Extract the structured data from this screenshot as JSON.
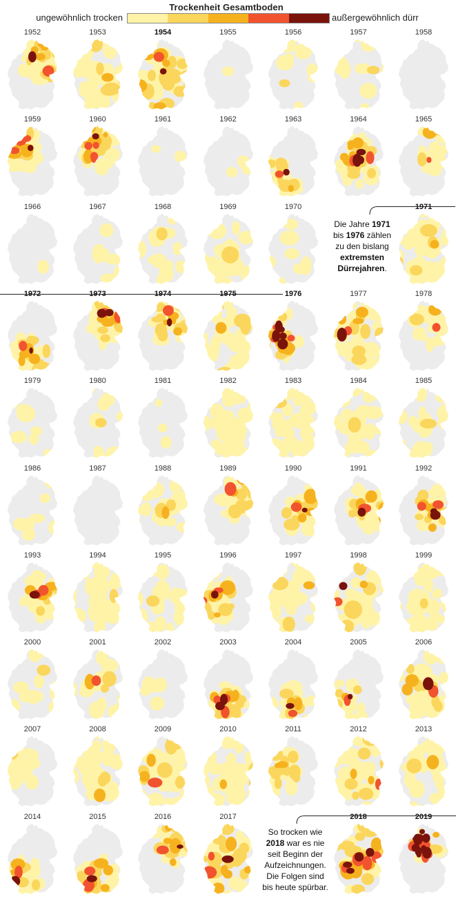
{
  "legend": {
    "title": "Trockenheit Gesamtboden",
    "low_label": "ungewöhnlich trocken",
    "high_label": "außergewöhnlich dürr",
    "colors": [
      "#fff3a8",
      "#fbd65c",
      "#f6b21e",
      "#f2532f",
      "#7a130c"
    ],
    "no_drought_color": "#ececec"
  },
  "annotations": {
    "note_1971": {
      "l1_a": "Die Jahre ",
      "l1_b": "1971",
      "l2_a": "bis ",
      "l2_b": "1976",
      "l2_c": " zählen",
      "l3": "zu den bislang",
      "l4": "extremsten",
      "l5_a": "Dürrejahren",
      "l5_b": "."
    },
    "note_2018": {
      "l1": "So trocken wie",
      "l2_a": "2018",
      "l2_b": " war es nie",
      "l3": "seit Beginn der",
      "l4": "Aufzeichnungen.",
      "l5": "Die Folgen sind",
      "l6": "bis heute spürbar."
    }
  },
  "chart_data": {
    "type": "heatmap",
    "title": "Trockenheit Gesamtboden",
    "description_scale": [
      "ungewöhnlich trocken",
      "außergewöhnlich dürr"
    ],
    "columns": 7,
    "years": [
      {
        "year": "1952",
        "levels": [
          0.55,
          0.25,
          0.1,
          0.05,
          0.03
        ],
        "pattern": "ne"
      },
      {
        "year": "1953",
        "levels": [
          0.7,
          0.12,
          0.03,
          0,
          0
        ],
        "pattern": "all"
      },
      {
        "year": "1954",
        "levels": [
          0.45,
          0.35,
          0.15,
          0.05,
          0.02
        ],
        "pattern": "all",
        "bold": true
      },
      {
        "year": "1955",
        "levels": [
          0.02,
          0,
          0,
          0,
          0
        ],
        "pattern": "none"
      },
      {
        "year": "1956",
        "levels": [
          0.2,
          0.02,
          0,
          0,
          0
        ],
        "pattern": "all"
      },
      {
        "year": "1957",
        "levels": [
          0.15,
          0.01,
          0,
          0,
          0
        ],
        "pattern": "all"
      },
      {
        "year": "1958",
        "levels": [
          0,
          0,
          0,
          0,
          0
        ],
        "pattern": "none"
      },
      {
        "year": "1959",
        "levels": [
          0.5,
          0.3,
          0.2,
          0.12,
          0.04
        ],
        "pattern": "nw"
      },
      {
        "year": "1960",
        "levels": [
          0.55,
          0.25,
          0.15,
          0.15,
          0.05
        ],
        "pattern": "north"
      },
      {
        "year": "1961",
        "levels": [
          0.03,
          0,
          0,
          0,
          0
        ],
        "pattern": "none"
      },
      {
        "year": "1962",
        "levels": [
          0.05,
          0,
          0,
          0,
          0
        ],
        "pattern": "none"
      },
      {
        "year": "1963",
        "levels": [
          0.6,
          0.2,
          0.08,
          0.02,
          0.03
        ],
        "pattern": "sw"
      },
      {
        "year": "1964",
        "levels": [
          0.45,
          0.3,
          0.2,
          0.1,
          0.12
        ],
        "pattern": "center"
      },
      {
        "year": "1965",
        "levels": [
          0.35,
          0.05,
          0.02,
          0.01,
          0
        ],
        "pattern": "ne"
      },
      {
        "year": "1966",
        "levels": [
          0.01,
          0,
          0,
          0,
          0
        ],
        "pattern": "none"
      },
      {
        "year": "1967",
        "levels": [
          0.1,
          0,
          0,
          0,
          0
        ],
        "pattern": "all"
      },
      {
        "year": "1968",
        "levels": [
          0.25,
          0.01,
          0,
          0,
          0
        ],
        "pattern": "all"
      },
      {
        "year": "1969",
        "levels": [
          0.35,
          0.02,
          0,
          0,
          0
        ],
        "pattern": "all"
      },
      {
        "year": "1970",
        "levels": [
          0.15,
          0,
          0,
          0,
          0
        ],
        "pattern": "all"
      },
      {
        "year": "",
        "levels": [
          0,
          0,
          0,
          0,
          0
        ],
        "pattern": "empty"
      },
      {
        "year": "1971",
        "levels": [
          0.8,
          0.1,
          0.02,
          0,
          0
        ],
        "pattern": "all",
        "bold": true
      },
      {
        "year": "1972",
        "levels": [
          0.55,
          0.2,
          0.1,
          0.05,
          0.05
        ],
        "pattern": "south",
        "bold": true
      },
      {
        "year": "1973",
        "levels": [
          0.45,
          0.25,
          0.15,
          0.08,
          0.08
        ],
        "pattern": "ne",
        "bold": true
      },
      {
        "year": "1974",
        "levels": [
          0.5,
          0.2,
          0.1,
          0.05,
          0.04
        ],
        "pattern": "ne",
        "bold": true
      },
      {
        "year": "1975",
        "levels": [
          0.7,
          0.1,
          0.02,
          0,
          0
        ],
        "pattern": "all",
        "bold": true
      },
      {
        "year": "1976",
        "levels": [
          0.2,
          0.2,
          0.25,
          0.15,
          0.2
        ],
        "pattern": "west",
        "bold": true
      },
      {
        "year": "1977",
        "levels": [
          0.6,
          0.2,
          0.08,
          0.03,
          0.02
        ],
        "pattern": "all"
      },
      {
        "year": "1978",
        "levels": [
          0.35,
          0.05,
          0.02,
          0.01,
          0
        ],
        "pattern": "ne"
      },
      {
        "year": "1979",
        "levels": [
          0.12,
          0,
          0,
          0,
          0
        ],
        "pattern": "all"
      },
      {
        "year": "1980",
        "levels": [
          0.15,
          0.01,
          0,
          0,
          0
        ],
        "pattern": "all"
      },
      {
        "year": "1981",
        "levels": [
          0.05,
          0,
          0,
          0,
          0
        ],
        "pattern": "none"
      },
      {
        "year": "1982",
        "levels": [
          0.55,
          0.02,
          0,
          0,
          0
        ],
        "pattern": "all"
      },
      {
        "year": "1983",
        "levels": [
          0.65,
          0.03,
          0,
          0,
          0
        ],
        "pattern": "all"
      },
      {
        "year": "1984",
        "levels": [
          0.6,
          0.02,
          0,
          0,
          0
        ],
        "pattern": "all"
      },
      {
        "year": "1985",
        "levels": [
          0.4,
          0.02,
          0,
          0,
          0
        ],
        "pattern": "all"
      },
      {
        "year": "1986",
        "levels": [
          0.15,
          0,
          0,
          0,
          0
        ],
        "pattern": "all"
      },
      {
        "year": "1987",
        "levels": [
          0,
          0,
          0,
          0,
          0
        ],
        "pattern": "none"
      },
      {
        "year": "1988",
        "levels": [
          0.35,
          0.05,
          0.01,
          0,
          0
        ],
        "pattern": "all"
      },
      {
        "year": "1989",
        "levels": [
          0.6,
          0.15,
          0.05,
          0.01,
          0
        ],
        "pattern": "ne"
      },
      {
        "year": "1990",
        "levels": [
          0.55,
          0.2,
          0.1,
          0.05,
          0.03
        ],
        "pattern": "east"
      },
      {
        "year": "1991",
        "levels": [
          0.55,
          0.2,
          0.1,
          0.05,
          0.05
        ],
        "pattern": "east"
      },
      {
        "year": "1992",
        "levels": [
          0.5,
          0.25,
          0.15,
          0.08,
          0.07
        ],
        "pattern": "east"
      },
      {
        "year": "1993",
        "levels": [
          0.55,
          0.15,
          0.1,
          0.06,
          0.04
        ],
        "pattern": "east"
      },
      {
        "year": "1994",
        "levels": [
          0.45,
          0.03,
          0,
          0,
          0
        ],
        "pattern": "all"
      },
      {
        "year": "1995",
        "levels": [
          0.35,
          0.03,
          0,
          0,
          0
        ],
        "pattern": "all"
      },
      {
        "year": "1996",
        "levels": [
          0.45,
          0.2,
          0.12,
          0.08,
          0.05
        ],
        "pattern": "west"
      },
      {
        "year": "1997",
        "levels": [
          0.6,
          0.05,
          0.01,
          0,
          0
        ],
        "pattern": "all"
      },
      {
        "year": "1998",
        "levels": [
          0.6,
          0.1,
          0.04,
          0.02,
          0.01
        ],
        "pattern": "all"
      },
      {
        "year": "1999",
        "levels": [
          0.55,
          0.03,
          0,
          0,
          0
        ],
        "pattern": "all"
      },
      {
        "year": "2000",
        "levels": [
          0.25,
          0.02,
          0,
          0,
          0
        ],
        "pattern": "all"
      },
      {
        "year": "2001",
        "levels": [
          0.3,
          0.05,
          0.02,
          0.01,
          0
        ],
        "pattern": "all"
      },
      {
        "year": "2002",
        "levels": [
          0.08,
          0,
          0,
          0,
          0
        ],
        "pattern": "none"
      },
      {
        "year": "2003",
        "levels": [
          0.4,
          0.25,
          0.15,
          0.1,
          0.06
        ],
        "pattern": "south"
      },
      {
        "year": "2004",
        "levels": [
          0.45,
          0.12,
          0.06,
          0.04,
          0.03
        ],
        "pattern": "south"
      },
      {
        "year": "2005",
        "levels": [
          0.35,
          0.06,
          0.03,
          0.01,
          0.01
        ],
        "pattern": "sw"
      },
      {
        "year": "2006",
        "levels": [
          0.65,
          0.15,
          0.06,
          0.02,
          0.01
        ],
        "pattern": "all"
      },
      {
        "year": "2007",
        "levels": [
          0.6,
          0.03,
          0,
          0,
          0
        ],
        "pattern": "west"
      },
      {
        "year": "2008",
        "levels": [
          0.55,
          0.05,
          0.01,
          0,
          0
        ],
        "pattern": "all"
      },
      {
        "year": "2009",
        "levels": [
          0.6,
          0.15,
          0.05,
          0.01,
          0
        ],
        "pattern": "all"
      },
      {
        "year": "2010",
        "levels": [
          0.65,
          0.05,
          0.01,
          0,
          0
        ],
        "pattern": "all"
      },
      {
        "year": "2011",
        "levels": [
          0.45,
          0.25,
          0.05,
          0,
          0
        ],
        "pattern": "west"
      },
      {
        "year": "2012",
        "levels": [
          0.6,
          0.15,
          0.05,
          0.01,
          0
        ],
        "pattern": "all"
      },
      {
        "year": "2013",
        "levels": [
          0.55,
          0.05,
          0.01,
          0,
          0
        ],
        "pattern": "all"
      },
      {
        "year": "2014",
        "levels": [
          0.55,
          0.15,
          0.06,
          0.03,
          0.01
        ],
        "pattern": "sw"
      },
      {
        "year": "2015",
        "levels": [
          0.45,
          0.25,
          0.12,
          0.06,
          0.04
        ],
        "pattern": "south"
      },
      {
        "year": "2016",
        "levels": [
          0.5,
          0.2,
          0.1,
          0.05,
          0.03
        ],
        "pattern": "ne"
      },
      {
        "year": "2017",
        "levels": [
          0.4,
          0.3,
          0.15,
          0.06,
          0.03
        ],
        "pattern": "all"
      },
      {
        "year": "",
        "levels": [
          0,
          0,
          0,
          0,
          0
        ],
        "pattern": "empty"
      },
      {
        "year": "2018",
        "levels": [
          0.25,
          0.25,
          0.2,
          0.15,
          0.15
        ],
        "pattern": "all",
        "bold": true
      },
      {
        "year": "2019",
        "levels": [
          0.1,
          0.1,
          0.15,
          0.2,
          0.45
        ],
        "pattern": "north",
        "bold": true
      }
    ]
  }
}
